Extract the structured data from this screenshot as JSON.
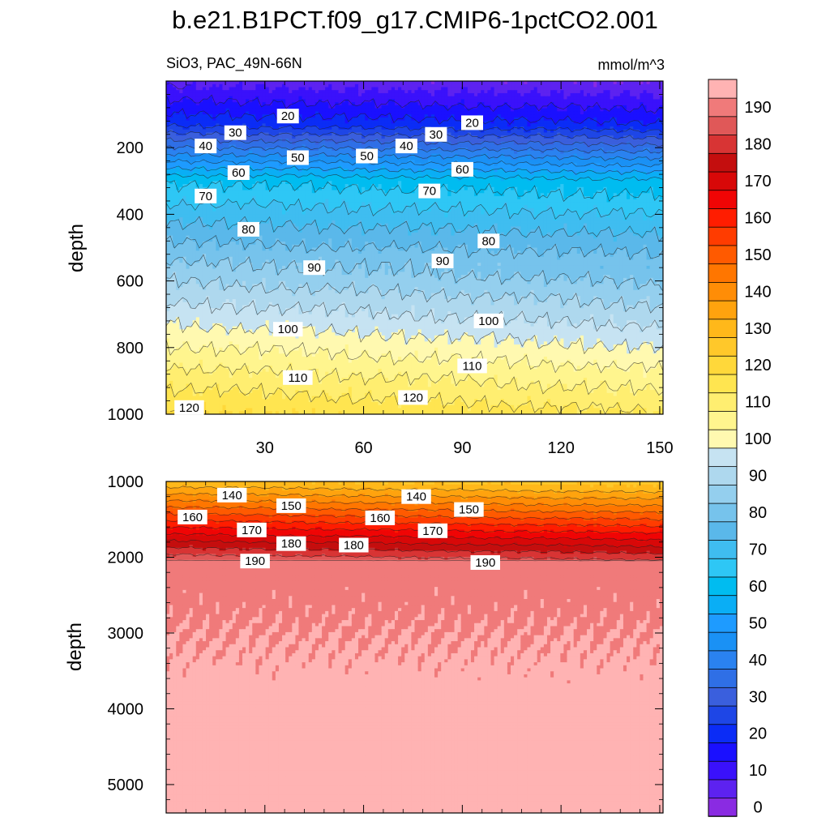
{
  "chart_data": {
    "type": "contour",
    "title": "b.e21.B1PCT.f09_g17.CMIP6-1pctCO2.001",
    "variable_label": "SiO3, PAC_49N-66N",
    "units_label": "mmol/m^3",
    "colorbar": {
      "levels": [
        0,
        5,
        10,
        15,
        20,
        25,
        30,
        35,
        40,
        45,
        50,
        55,
        60,
        65,
        70,
        75,
        80,
        85,
        90,
        95,
        100,
        105,
        110,
        115,
        120,
        125,
        130,
        135,
        140,
        145,
        150,
        155,
        160,
        165,
        170,
        175,
        180,
        185,
        190,
        195
      ],
      "labels": [
        "0",
        "10",
        "20",
        "30",
        "40",
        "50",
        "60",
        "70",
        "80",
        "90",
        "100",
        "110",
        "120",
        "130",
        "140",
        "150",
        "160",
        "170",
        "180",
        "190"
      ],
      "colors": [
        "#8a2be2",
        "#5d22f0",
        "#3a11fb",
        "#1a10ff",
        "#0b2cf6",
        "#1e46e6",
        "#3a5fdd",
        "#2f6fe6",
        "#2a82f0",
        "#1a91f5",
        "#1e9bff",
        "#0aaef5",
        "#00bcf0",
        "#2ec7f5",
        "#3fbdf0",
        "#5ab8ea",
        "#76c3ec",
        "#94cfee",
        "#aed8ee",
        "#c6e3f2",
        "#fff9b0",
        "#fff58e",
        "#ffee70",
        "#ffe550",
        "#ffd83a",
        "#ffc82a",
        "#ffb81a",
        "#ffa30e",
        "#ff8d06",
        "#ff7600",
        "#ff5a00",
        "#ff3c00",
        "#ff1d00",
        "#f00505",
        "#d80808",
        "#c40e0e",
        "#d83434",
        "#e05858",
        "#f07a7a",
        "#ffb3b3"
      ]
    },
    "upper_panel": {
      "xlabel": "",
      "ylabel": "depth",
      "x_ticks": [
        "30",
        "60",
        "90",
        "120",
        "150"
      ],
      "x_tick_values": [
        30,
        60,
        90,
        120,
        150
      ],
      "y_ticks": [
        "200",
        "400",
        "600",
        "800",
        "1000"
      ],
      "y_tick_values": [
        200,
        400,
        600,
        800,
        1000
      ],
      "xlim": [
        0,
        151
      ],
      "ylim": [
        0,
        1000
      ],
      "contour_labels": [
        {
          "text": "20",
          "x": 37,
          "y": 105
        },
        {
          "text": "30",
          "x": 21,
          "y": 155
        },
        {
          "text": "40",
          "x": 12,
          "y": 195
        },
        {
          "text": "50",
          "x": 40,
          "y": 230
        },
        {
          "text": "60",
          "x": 22,
          "y": 275
        },
        {
          "text": "70",
          "x": 12,
          "y": 345
        },
        {
          "text": "80",
          "x": 25,
          "y": 445
        },
        {
          "text": "90",
          "x": 45,
          "y": 560
        },
        {
          "text": "100",
          "x": 37,
          "y": 745
        },
        {
          "text": "110",
          "x": 40,
          "y": 890
        },
        {
          "text": "120",
          "x": 7,
          "y": 980
        },
        {
          "text": "50",
          "x": 61,
          "y": 225
        },
        {
          "text": "40",
          "x": 73,
          "y": 195
        },
        {
          "text": "30",
          "x": 82,
          "y": 160
        },
        {
          "text": "20",
          "x": 93,
          "y": 125
        },
        {
          "text": "60",
          "x": 90,
          "y": 265
        },
        {
          "text": "70",
          "x": 80,
          "y": 330
        },
        {
          "text": "80",
          "x": 98,
          "y": 480
        },
        {
          "text": "90",
          "x": 84,
          "y": 540
        },
        {
          "text": "100",
          "x": 98,
          "y": 720
        },
        {
          "text": "110",
          "x": 93,
          "y": 855
        },
        {
          "text": "120",
          "x": 75,
          "y": 950
        }
      ]
    },
    "lower_panel": {
      "xlabel": "",
      "ylabel": "depth",
      "x_ticks": [],
      "y_ticks": [
        "1000",
        "2000",
        "3000",
        "4000",
        "5000"
      ],
      "y_tick_values": [
        1000,
        2000,
        3000,
        4000,
        5000
      ],
      "xlim": [
        0,
        151
      ],
      "ylim": [
        1000,
        5375
      ],
      "contour_labels": [
        {
          "text": "140",
          "x": 20,
          "y": 1180
        },
        {
          "text": "150",
          "x": 38,
          "y": 1320
        },
        {
          "text": "160",
          "x": 8,
          "y": 1470
        },
        {
          "text": "170",
          "x": 26,
          "y": 1640
        },
        {
          "text": "180",
          "x": 38,
          "y": 1820
        },
        {
          "text": "190",
          "x": 27,
          "y": 2050
        },
        {
          "text": "140",
          "x": 76,
          "y": 1200
        },
        {
          "text": "150",
          "x": 92,
          "y": 1370
        },
        {
          "text": "160",
          "x": 65,
          "y": 1480
        },
        {
          "text": "170",
          "x": 81,
          "y": 1650
        },
        {
          "text": "180",
          "x": 57,
          "y": 1840
        },
        {
          "text": "190",
          "x": 97,
          "y": 2070
        }
      ]
    }
  }
}
